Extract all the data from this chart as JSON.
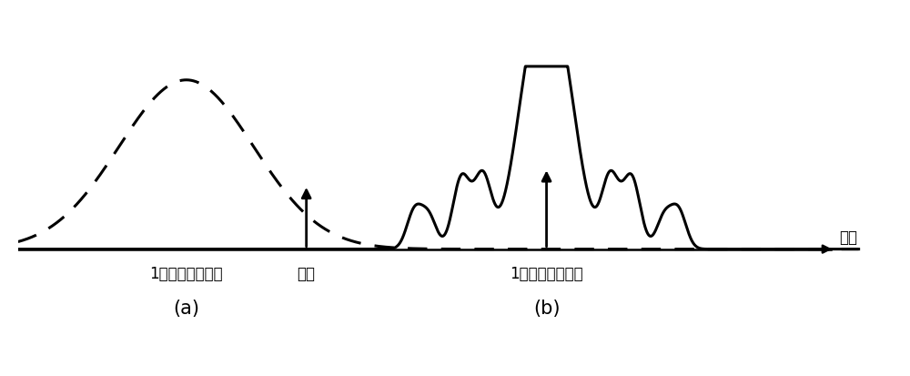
{
  "bg_color": "#ffffff",
  "line_color": "#000000",
  "arrow_color": "#000000",
  "label_a": "(a)",
  "label_b": "(b)",
  "text_sideband_left": "1阶强度调制边带",
  "text_carrier": "载波",
  "text_sideband_right": "1阶强度调制边带",
  "text_wavelength": "波长",
  "fontsize_label": 15,
  "fontsize_text": 12
}
